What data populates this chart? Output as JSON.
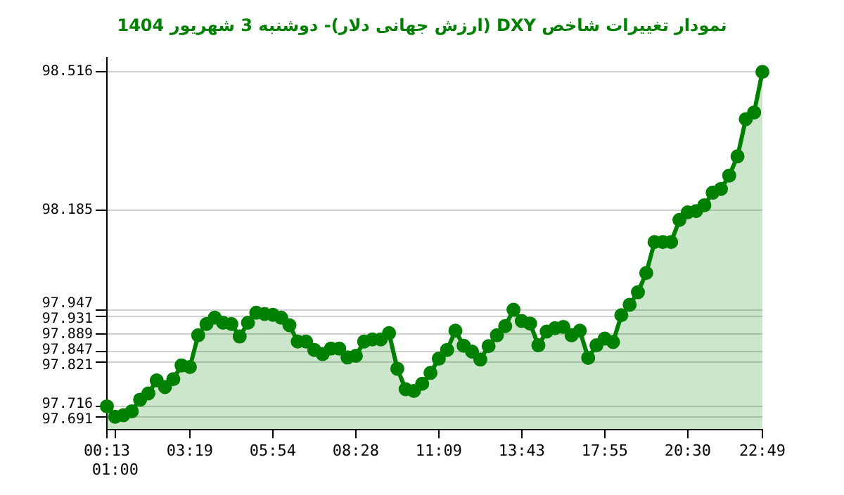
{
  "chart_data": {
    "type": "area",
    "title": "نمودار تغییرات شاخص DXY (ارزش جهانی دلار)-  دوشنبه  3 شهریور 1404",
    "categories": [
      "00:13",
      "01:00",
      null,
      null,
      null,
      null,
      null,
      null,
      null,
      null,
      "03:19",
      null,
      null,
      null,
      null,
      null,
      null,
      null,
      null,
      null,
      "05:54",
      null,
      null,
      null,
      null,
      null,
      null,
      null,
      null,
      null,
      "08:28",
      null,
      null,
      null,
      null,
      null,
      null,
      null,
      null,
      null,
      "11:09",
      null,
      null,
      null,
      null,
      null,
      null,
      null,
      null,
      null,
      "13:43",
      null,
      null,
      null,
      null,
      null,
      null,
      null,
      null,
      null,
      "17:55",
      null,
      null,
      null,
      null,
      null,
      null,
      null,
      null,
      null,
      "20:30",
      null,
      null,
      null,
      null,
      null,
      null,
      null,
      null,
      "22:49"
    ],
    "series": [
      {
        "color": "#008000",
        "values": [
          97.716,
          97.691,
          97.695,
          97.704,
          97.732,
          97.747,
          97.778,
          97.762,
          97.781,
          97.814,
          97.81,
          97.886,
          97.913,
          97.928,
          97.916,
          97.913,
          97.883,
          97.916,
          97.94,
          97.937,
          97.935,
          97.928,
          97.91,
          97.871,
          97.871,
          97.851,
          97.841,
          97.854,
          97.854,
          97.833,
          97.837,
          97.871,
          97.876,
          97.876,
          97.891,
          97.806,
          97.757,
          97.753,
          97.77,
          97.796,
          97.83,
          97.851,
          97.897,
          97.861,
          97.847,
          97.828,
          97.86,
          97.886,
          97.908,
          97.947,
          97.92,
          97.914,
          97.862,
          97.895,
          97.903,
          97.906,
          97.886,
          97.897,
          97.832,
          97.862,
          97.878,
          97.87,
          97.934,
          97.959,
          97.989,
          98.035,
          98.109,
          98.109,
          98.109,
          98.162,
          98.18,
          98.183,
          98.197,
          98.227,
          98.236,
          98.268,
          98.314,
          98.403,
          98.419,
          98.516
        ]
      }
    ],
    "ylim": [
      97.66,
      98.55
    ],
    "yticks": [
      97.691,
      97.716,
      97.821,
      97.847,
      97.889,
      97.931,
      97.947,
      98.185,
      98.516
    ],
    "grid": "y",
    "legend": false,
    "marker": "circle",
    "line_style": "solid"
  }
}
